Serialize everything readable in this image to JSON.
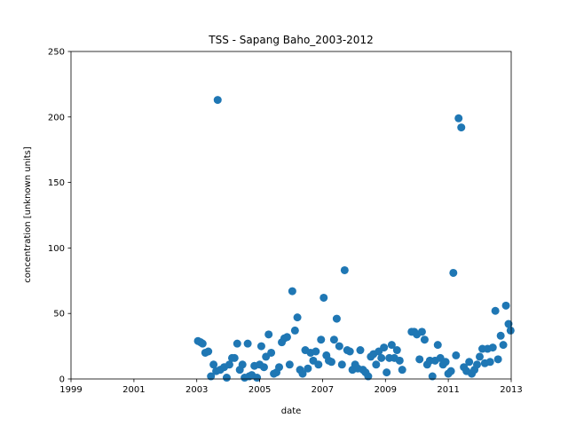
{
  "chart_data": {
    "type": "scatter",
    "title": "TSS - Sapang Baho_2003-2012",
    "xlabel": "date",
    "ylabel": "concentration [unknown units]",
    "xlim": [
      "1999-01-01",
      "2013-01-01"
    ],
    "ylim": [
      0,
      250
    ],
    "x_ticks": [
      "1999",
      "2001",
      "2003",
      "2005",
      "2007",
      "2009",
      "2011",
      "2013"
    ],
    "y_ticks": [
      0,
      50,
      100,
      150,
      200,
      250
    ],
    "grid": false,
    "legend": "none",
    "marker_color": "#1f77b4",
    "series": [
      {
        "points": [
          [
            "2003-01-15",
            29
          ],
          [
            "2003-02-15",
            28
          ],
          [
            "2003-03-10",
            27
          ],
          [
            "2003-04-10",
            20
          ],
          [
            "2003-05-15",
            21
          ],
          [
            "2003-06-15",
            2
          ],
          [
            "2003-07-15",
            11
          ],
          [
            "2003-08-15",
            6
          ],
          [
            "2003-09-01",
            213
          ],
          [
            "2003-10-01",
            7
          ],
          [
            "2003-11-15",
            9
          ],
          [
            "2003-12-15",
            1
          ],
          [
            "2004-01-15",
            11
          ],
          [
            "2004-02-15",
            16
          ],
          [
            "2004-03-15",
            16
          ],
          [
            "2004-04-15",
            27
          ],
          [
            "2004-05-15",
            7
          ],
          [
            "2004-06-15",
            11
          ],
          [
            "2004-07-10",
            1
          ],
          [
            "2004-08-15",
            27
          ],
          [
            "2004-09-01",
            2
          ],
          [
            "2004-10-01",
            3
          ],
          [
            "2004-11-01",
            10
          ],
          [
            "2004-12-01",
            1
          ],
          [
            "2005-01-01",
            11
          ],
          [
            "2005-01-20",
            25
          ],
          [
            "2005-02-20",
            9
          ],
          [
            "2005-03-15",
            17
          ],
          [
            "2005-04-15",
            34
          ],
          [
            "2005-05-15",
            20
          ],
          [
            "2005-06-15",
            4
          ],
          [
            "2005-07-15",
            5
          ],
          [
            "2005-08-15",
            9
          ],
          [
            "2005-09-15",
            28
          ],
          [
            "2005-10-15",
            31
          ],
          [
            "2005-11-15",
            32
          ],
          [
            "2005-12-15",
            11
          ],
          [
            "2006-01-15",
            67
          ],
          [
            "2006-02-15",
            37
          ],
          [
            "2006-03-15",
            47
          ],
          [
            "2006-04-15",
            7
          ],
          [
            "2006-05-15",
            4
          ],
          [
            "2006-06-15",
            22
          ],
          [
            "2006-07-15",
            8
          ],
          [
            "2006-08-15",
            20
          ],
          [
            "2006-09-15",
            14
          ],
          [
            "2006-10-15",
            21
          ],
          [
            "2006-11-15",
            11
          ],
          [
            "2006-12-15",
            30
          ],
          [
            "2007-01-15",
            62
          ],
          [
            "2007-02-15",
            18
          ],
          [
            "2007-03-15",
            14
          ],
          [
            "2007-04-15",
            13
          ],
          [
            "2007-05-15",
            30
          ],
          [
            "2007-06-15",
            46
          ],
          [
            "2007-07-15",
            25
          ],
          [
            "2007-08-15",
            11
          ],
          [
            "2007-09-15",
            83
          ],
          [
            "2007-10-15",
            22
          ],
          [
            "2007-11-15",
            21
          ],
          [
            "2007-12-15",
            7
          ],
          [
            "2008-01-15",
            11
          ],
          [
            "2008-02-15",
            8
          ],
          [
            "2008-03-15",
            22
          ],
          [
            "2008-04-15",
            7
          ],
          [
            "2008-05-15",
            5
          ],
          [
            "2008-06-15",
            2
          ],
          [
            "2008-07-15",
            17
          ],
          [
            "2008-08-15",
            19
          ],
          [
            "2008-09-15",
            11
          ],
          [
            "2008-10-15",
            21
          ],
          [
            "2008-11-15",
            16
          ],
          [
            "2008-12-15",
            24
          ],
          [
            "2009-01-15",
            5
          ],
          [
            "2009-02-15",
            16
          ],
          [
            "2009-03-15",
            26
          ],
          [
            "2009-04-15",
            16
          ],
          [
            "2009-05-15",
            22
          ],
          [
            "2009-06-15",
            14
          ],
          [
            "2009-07-15",
            7
          ],
          [
            "2009-11-01",
            36
          ],
          [
            "2009-12-01",
            36
          ],
          [
            "2010-01-01",
            34
          ],
          [
            "2010-02-01",
            15
          ],
          [
            "2010-03-01",
            36
          ],
          [
            "2010-04-01",
            30
          ],
          [
            "2010-05-01",
            11
          ],
          [
            "2010-06-01",
            14
          ],
          [
            "2010-07-01",
            2
          ],
          [
            "2010-08-01",
            14
          ],
          [
            "2010-09-01",
            26
          ],
          [
            "2010-10-01",
            16
          ],
          [
            "2010-11-01",
            11
          ],
          [
            "2010-12-01",
            13
          ],
          [
            "2011-01-01",
            4
          ],
          [
            "2011-02-01",
            6
          ],
          [
            "2011-03-01",
            81
          ],
          [
            "2011-04-01",
            18
          ],
          [
            "2011-05-01",
            199
          ],
          [
            "2011-06-01",
            192
          ],
          [
            "2011-07-01",
            9
          ],
          [
            "2011-08-01",
            6
          ],
          [
            "2011-09-01",
            13
          ],
          [
            "2011-10-01",
            4
          ],
          [
            "2011-11-01",
            7
          ],
          [
            "2011-12-01",
            11
          ],
          [
            "2012-01-01",
            17
          ],
          [
            "2012-02-01",
            23
          ],
          [
            "2012-03-01",
            12
          ],
          [
            "2012-04-01",
            23
          ],
          [
            "2012-05-01",
            13
          ],
          [
            "2012-06-01",
            24
          ],
          [
            "2012-07-01",
            52
          ],
          [
            "2012-08-01",
            15
          ],
          [
            "2012-09-01",
            33
          ],
          [
            "2012-10-01",
            26
          ],
          [
            "2012-11-01",
            56
          ],
          [
            "2012-12-01",
            42
          ],
          [
            "2012-12-25",
            37
          ]
        ]
      }
    ]
  }
}
